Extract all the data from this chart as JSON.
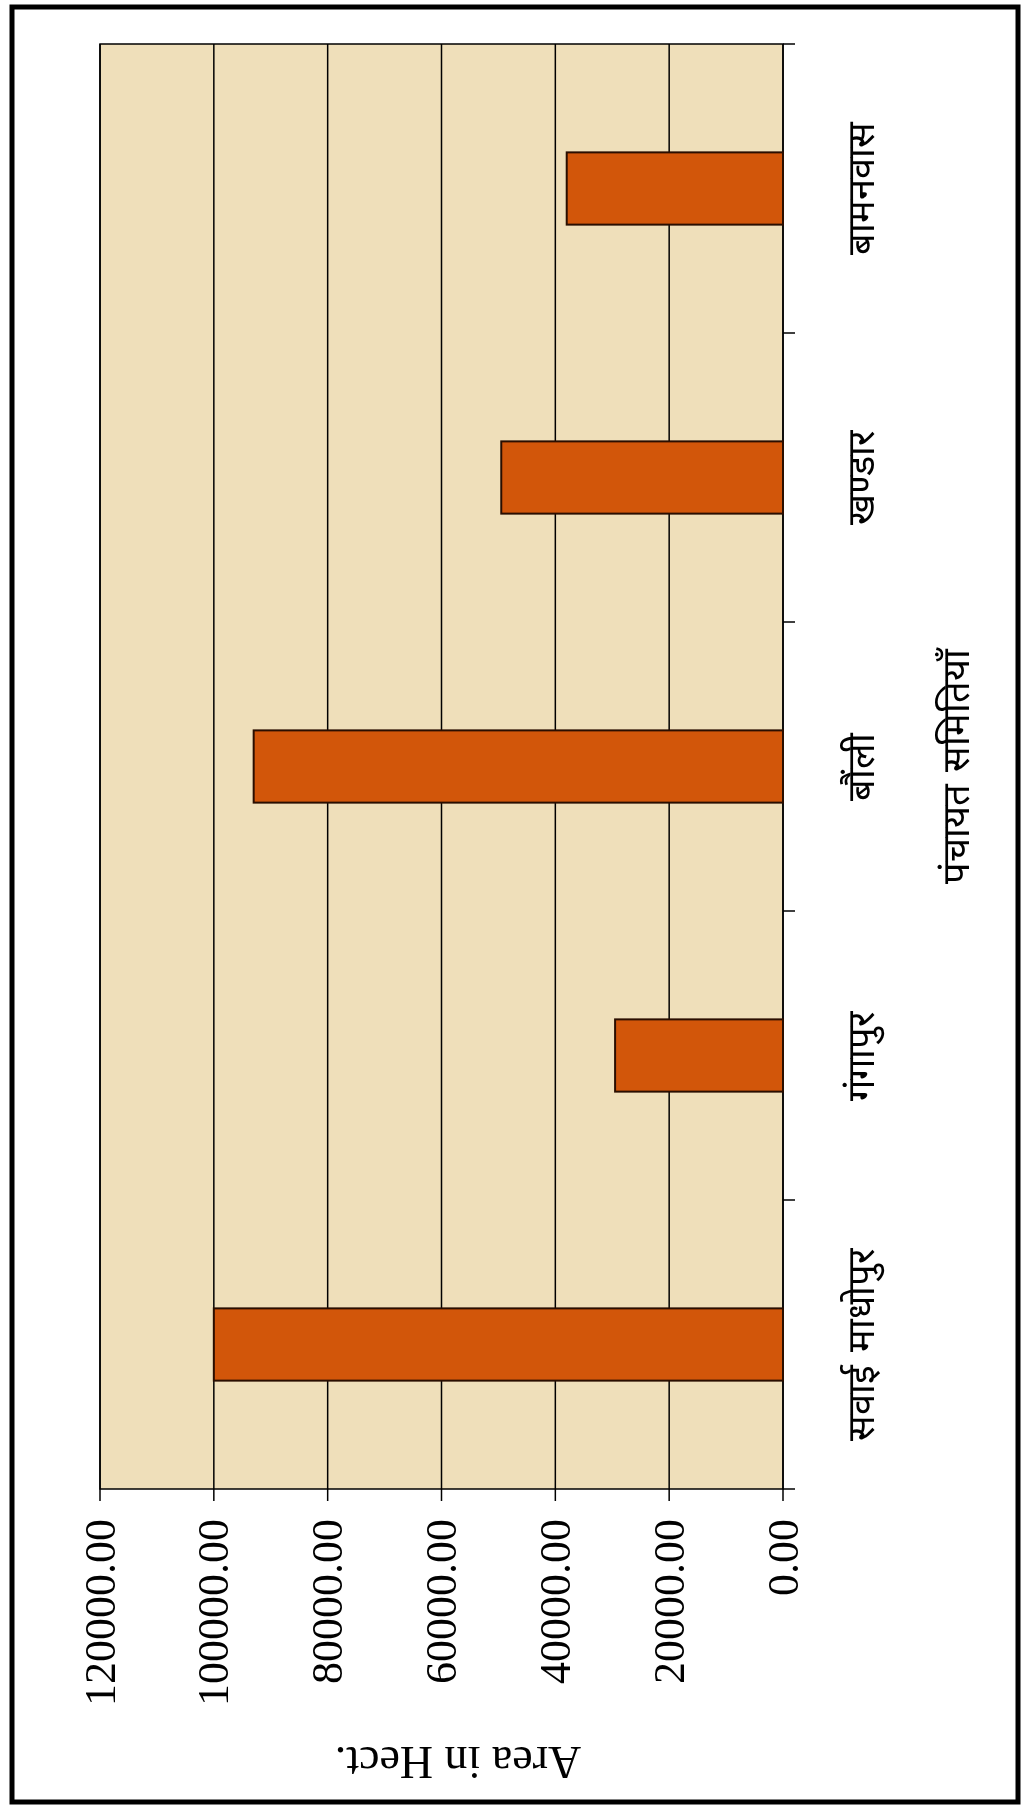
{
  "chart_data": {
    "type": "bar",
    "orientation": "horizontal",
    "categories": [
      "बामनवास",
      "खण्डार",
      "बौंली",
      "गंगापुर",
      "सवाई माधोपुर"
    ],
    "values": [
      38000,
      49500,
      93000,
      29500,
      100000
    ],
    "color": "#d2560a",
    "xlabel": "Area in Hect.",
    "ylabel": "पंचायत समितियाँ",
    "xlim": [
      120000,
      0
    ],
    "xticks": [
      {
        "value": 120000,
        "label": "120000.00"
      },
      {
        "value": 100000,
        "label": "100000.00"
      },
      {
        "value": 80000,
        "label": "80000.00"
      },
      {
        "value": 60000,
        "label": "60000.00"
      },
      {
        "value": 40000,
        "label": "40000.00"
      },
      {
        "value": 20000,
        "label": "20000.00"
      },
      {
        "value": 0,
        "label": "0.00"
      }
    ],
    "grid": "x"
  }
}
